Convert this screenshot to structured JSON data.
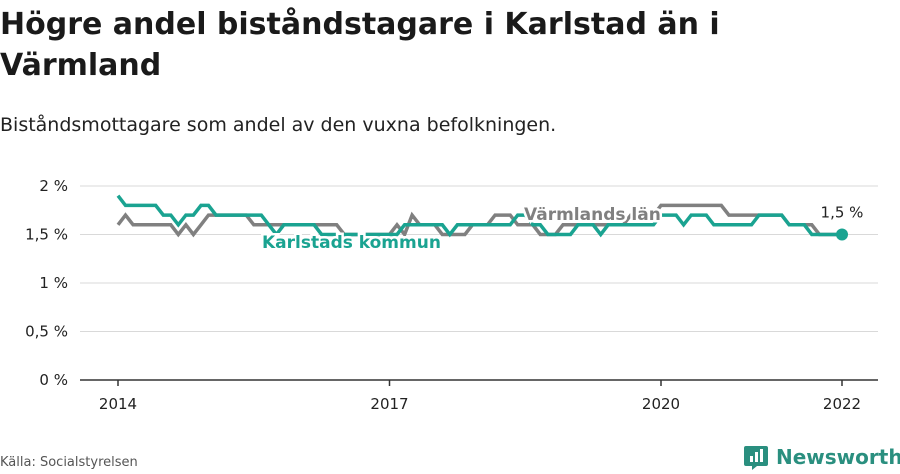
{
  "header": {
    "title": "Högre andel biståndstagare i Karlstad än i Värmland",
    "subtitle": "Biståndsmottagare som andel av den vuxna befolkningen."
  },
  "footer": {
    "source": "Källa: Socialstyrelsen",
    "brand": "Newsworthy",
    "brand_icon": "bar-chart-logo-icon"
  },
  "colors": {
    "karlstad": "#1aa391",
    "varmland": "#808080",
    "grid": "#d9d9d9",
    "axis": "#333333"
  },
  "chart_data": {
    "type": "line",
    "title": "Högre andel biståndstagare i Karlstad än i Värmland",
    "subtitle": "Biståndsmottagare som andel av den vuxna befolkningen.",
    "xlabel": "",
    "ylabel": "",
    "ylim": [
      0,
      2
    ],
    "xlim": [
      2013.6,
      2022.4
    ],
    "y_ticks": [
      {
        "value": 0,
        "label": "0 %"
      },
      {
        "value": 0.5,
        "label": "0,5 %"
      },
      {
        "value": 1,
        "label": "1 %"
      },
      {
        "value": 1.5,
        "label": "1,5 %"
      },
      {
        "value": 2,
        "label": "2 %"
      }
    ],
    "x_ticks": [
      {
        "value": 2014,
        "label": "2014"
      },
      {
        "value": 2017,
        "label": "2017"
      },
      {
        "value": 2020,
        "label": "2020"
      },
      {
        "value": 2022,
        "label": "2022"
      }
    ],
    "grid": true,
    "end_label": "1,5 %",
    "series": [
      {
        "name": "Värmlands län",
        "color": "#808080",
        "x": [
          2014.0,
          2014.0833,
          2014.1667,
          2014.25,
          2014.3333,
          2014.4167,
          2014.5,
          2014.5833,
          2014.6667,
          2014.75,
          2014.8333,
          2014.9167,
          2015.0,
          2015.0833,
          2015.1667,
          2015.25,
          2015.3333,
          2015.4167,
          2015.5,
          2015.5833,
          2015.6667,
          2015.75,
          2015.8333,
          2015.9167,
          2016.0,
          2016.0833,
          2016.1667,
          2016.25,
          2016.3333,
          2016.4167,
          2016.5,
          2016.5833,
          2016.6667,
          2016.75,
          2016.8333,
          2016.9167,
          2017.0,
          2017.0833,
          2017.1667,
          2017.25,
          2017.3333,
          2017.4167,
          2017.5,
          2017.5833,
          2017.6667,
          2017.75,
          2017.8333,
          2017.9167,
          2018.0,
          2018.0833,
          2018.1667,
          2018.25,
          2018.3333,
          2018.4167,
          2018.5,
          2018.5833,
          2018.6667,
          2018.75,
          2018.8333,
          2018.9167,
          2019.0,
          2019.0833,
          2019.1667,
          2019.25,
          2019.3333,
          2019.4167,
          2019.5,
          2019.5833,
          2019.6667,
          2019.75,
          2019.8333,
          2019.9167,
          2020.0,
          2020.0833,
          2020.1667,
          2020.25,
          2020.3333,
          2020.4167,
          2020.5,
          2020.5833,
          2020.6667,
          2020.75,
          2020.8333,
          2020.9167,
          2021.0,
          2021.0833,
          2021.1667,
          2021.25,
          2021.3333,
          2021.4167,
          2021.5,
          2021.5833,
          2021.6667,
          2021.75,
          2021.8333,
          2021.9167,
          2022.0
        ],
        "values": [
          1.6,
          1.7,
          1.6,
          1.6,
          1.6,
          1.6,
          1.6,
          1.6,
          1.5,
          1.6,
          1.5,
          1.6,
          1.7,
          1.7,
          1.7,
          1.7,
          1.7,
          1.7,
          1.6,
          1.6,
          1.6,
          1.6,
          1.6,
          1.6,
          1.6,
          1.6,
          1.6,
          1.6,
          1.6,
          1.6,
          1.5,
          1.5,
          1.5,
          1.5,
          1.5,
          1.5,
          1.5,
          1.6,
          1.5,
          1.7,
          1.6,
          1.6,
          1.6,
          1.5,
          1.5,
          1.5,
          1.5,
          1.6,
          1.6,
          1.6,
          1.7,
          1.7,
          1.7,
          1.6,
          1.6,
          1.6,
          1.5,
          1.5,
          1.5,
          1.6,
          1.6,
          1.6,
          1.6,
          1.6,
          1.6,
          1.6,
          1.6,
          1.6,
          1.7,
          1.7,
          1.7,
          1.7,
          1.8,
          1.8,
          1.8,
          1.8,
          1.8,
          1.8,
          1.8,
          1.8,
          1.8,
          1.7,
          1.7,
          1.7,
          1.7,
          1.7,
          1.7,
          1.7,
          1.7,
          1.6,
          1.6,
          1.6,
          1.6,
          1.5,
          1.5,
          1.5,
          1.5
        ]
      },
      {
        "name": "Karlstads kommun",
        "color": "#1aa391",
        "x": [
          2014.0,
          2014.0833,
          2014.1667,
          2014.25,
          2014.3333,
          2014.4167,
          2014.5,
          2014.5833,
          2014.6667,
          2014.75,
          2014.8333,
          2014.9167,
          2015.0,
          2015.0833,
          2015.1667,
          2015.25,
          2015.3333,
          2015.4167,
          2015.5,
          2015.5833,
          2015.6667,
          2015.75,
          2015.8333,
          2015.9167,
          2016.0,
          2016.0833,
          2016.1667,
          2016.25,
          2016.3333,
          2016.4167,
          2016.5,
          2016.5833,
          2016.6667,
          2016.75,
          2016.8333,
          2016.9167,
          2017.0,
          2017.0833,
          2017.1667,
          2017.25,
          2017.3333,
          2017.4167,
          2017.5,
          2017.5833,
          2017.6667,
          2017.75,
          2017.8333,
          2017.9167,
          2018.0,
          2018.0833,
          2018.1667,
          2018.25,
          2018.3333,
          2018.4167,
          2018.5,
          2018.5833,
          2018.6667,
          2018.75,
          2018.8333,
          2018.9167,
          2019.0,
          2019.0833,
          2019.1667,
          2019.25,
          2019.3333,
          2019.4167,
          2019.5,
          2019.5833,
          2019.6667,
          2019.75,
          2019.8333,
          2019.9167,
          2020.0,
          2020.0833,
          2020.1667,
          2020.25,
          2020.3333,
          2020.4167,
          2020.5,
          2020.5833,
          2020.6667,
          2020.75,
          2020.8333,
          2020.9167,
          2021.0,
          2021.0833,
          2021.1667,
          2021.25,
          2021.3333,
          2021.4167,
          2021.5,
          2021.5833,
          2021.6667,
          2021.75,
          2021.8333,
          2021.9167,
          2022.0
        ],
        "values": [
          1.9,
          1.8,
          1.8,
          1.8,
          1.8,
          1.8,
          1.7,
          1.7,
          1.6,
          1.7,
          1.7,
          1.8,
          1.8,
          1.7,
          1.7,
          1.7,
          1.7,
          1.7,
          1.7,
          1.7,
          1.6,
          1.5,
          1.6,
          1.6,
          1.6,
          1.6,
          1.6,
          1.5,
          1.5,
          1.5,
          1.5,
          1.5,
          1.5,
          1.5,
          1.5,
          1.5,
          1.5,
          1.5,
          1.6,
          1.6,
          1.6,
          1.6,
          1.6,
          1.6,
          1.5,
          1.6,
          1.6,
          1.6,
          1.6,
          1.6,
          1.6,
          1.6,
          1.6,
          1.7,
          1.7,
          1.6,
          1.6,
          1.5,
          1.5,
          1.5,
          1.5,
          1.6,
          1.6,
          1.6,
          1.5,
          1.6,
          1.6,
          1.6,
          1.6,
          1.6,
          1.6,
          1.6,
          1.7,
          1.7,
          1.7,
          1.6,
          1.7,
          1.7,
          1.7,
          1.6,
          1.6,
          1.6,
          1.6,
          1.6,
          1.6,
          1.7,
          1.7,
          1.7,
          1.7,
          1.6,
          1.6,
          1.6,
          1.5,
          1.5,
          1.5,
          1.5,
          1.5
        ]
      }
    ]
  }
}
